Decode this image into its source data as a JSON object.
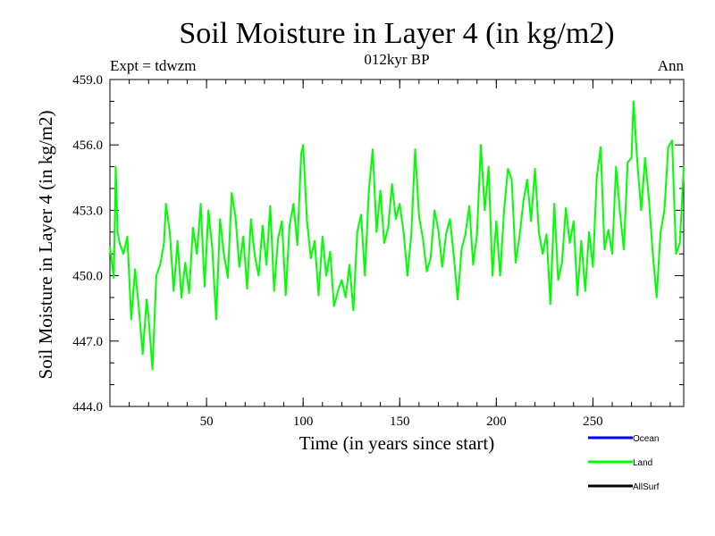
{
  "chart_data": {
    "type": "line",
    "title": "Soil Moisture in Layer 4 (in kg/m2)",
    "subtitle": "012kyr BP",
    "top_left_label": "Expt = tdwzm",
    "top_right_label": "Ann",
    "xlabel": "Time (in years since start)",
    "ylabel": "Soil Moisture in Layer 4 (in kg/m2)",
    "xlim": [
      0,
      297
    ],
    "ylim": [
      444.0,
      459.0
    ],
    "x_ticks": [
      50,
      100,
      150,
      200,
      250
    ],
    "x_tick_labels": [
      "50",
      "100",
      "150",
      "200",
      "250"
    ],
    "y_ticks": [
      444.0,
      447.0,
      450.0,
      453.0,
      456.0,
      459.0
    ],
    "y_tick_labels": [
      "444.0",
      "447.0",
      "450.0",
      "453.0",
      "456.0",
      "459.0"
    ],
    "grid": false,
    "legend": {
      "placement": "bottom-right",
      "entries": [
        {
          "name": "Ocean",
          "color": "#0000ff"
        },
        {
          "name": "Land",
          "color": "#00ff00"
        },
        {
          "name": "AllSurf",
          "color": "#000000"
        }
      ]
    },
    "series": [
      {
        "name": "Land",
        "color": "#00ff00",
        "x": [
          0,
          2,
          3,
          4,
          5,
          7,
          9,
          11,
          13,
          15,
          17,
          19,
          20,
          22,
          24,
          26,
          28,
          29,
          31,
          33,
          35,
          37,
          39,
          41,
          43,
          45,
          47,
          49,
          51,
          53,
          55,
          57,
          59,
          61,
          63,
          65,
          67,
          69,
          71,
          73,
          75,
          77,
          79,
          81,
          83,
          85,
          87,
          89,
          91,
          93,
          95,
          97,
          99,
          100,
          102,
          104,
          106,
          108,
          110,
          112,
          114,
          116,
          118,
          120,
          122,
          124,
          126,
          128,
          130,
          132,
          134,
          136,
          138,
          140,
          142,
          144,
          146,
          148,
          150,
          152,
          154,
          156,
          158,
          160,
          162,
          164,
          166,
          168,
          170,
          172,
          174,
          176,
          178,
          180,
          182,
          184,
          186,
          188,
          190,
          192,
          194,
          196,
          198,
          200,
          202,
          204,
          206,
          208,
          210,
          212,
          214,
          216,
          218,
          220,
          222,
          224,
          226,
          228,
          230,
          232,
          234,
          236,
          238,
          240,
          242,
          244,
          246,
          248,
          250,
          252,
          254,
          256,
          258,
          260,
          262,
          264,
          266,
          268,
          270,
          271,
          273,
          275,
          277,
          279,
          281,
          283,
          285,
          287,
          289,
          291,
          293,
          295,
          297
        ],
        "y": [
          451.3,
          449.9,
          455.0,
          452.0,
          451.5,
          451.0,
          451.8,
          448.0,
          450.3,
          448.5,
          446.4,
          448.9,
          448.1,
          445.7,
          450.0,
          450.5,
          451.5,
          453.3,
          452.0,
          449.3,
          451.6,
          449.0,
          450.6,
          449.2,
          452.2,
          451.0,
          453.3,
          449.5,
          453.0,
          451.2,
          448.0,
          452.6,
          451.0,
          449.9,
          453.8,
          452.7,
          450.4,
          451.8,
          449.4,
          452.6,
          450.9,
          450.0,
          452.3,
          450.5,
          453.2,
          449.3,
          451.7,
          452.5,
          449.1,
          452.3,
          453.3,
          451.4,
          455.6,
          456.0,
          452.5,
          450.8,
          451.6,
          449.1,
          451.8,
          450.0,
          451.1,
          448.6,
          449.3,
          449.8,
          449.0,
          450.5,
          448.4,
          452.0,
          452.8,
          450.0,
          453.9,
          455.8,
          452.0,
          453.9,
          451.5,
          452.2,
          454.2,
          452.6,
          453.3,
          452.0,
          450.0,
          451.9,
          455.8,
          452.7,
          451.7,
          450.2,
          450.8,
          453.0,
          452.1,
          450.4,
          451.9,
          452.6,
          450.9,
          448.9,
          451.2,
          451.9,
          453.2,
          450.5,
          451.9,
          456.0,
          453.0,
          455.0,
          450.0,
          452.5,
          450.0,
          453.0,
          454.9,
          454.4,
          450.6,
          451.8,
          453.4,
          454.4,
          452.5,
          454.9,
          452.0,
          451.0,
          451.9,
          448.7,
          453.3,
          449.8,
          450.6,
          453.1,
          451.5,
          452.5,
          449.1,
          451.6,
          449.3,
          452.0,
          450.4,
          454.5,
          455.9,
          451.2,
          452.1,
          451.0,
          455.0,
          452.9,
          451.2,
          455.2,
          455.4,
          458.0,
          455.2,
          453.0,
          455.4,
          453.5,
          451.0,
          449.0,
          452.0,
          453.0,
          455.9,
          456.2,
          451.0,
          451.5,
          455.0
        ]
      }
    ]
  }
}
